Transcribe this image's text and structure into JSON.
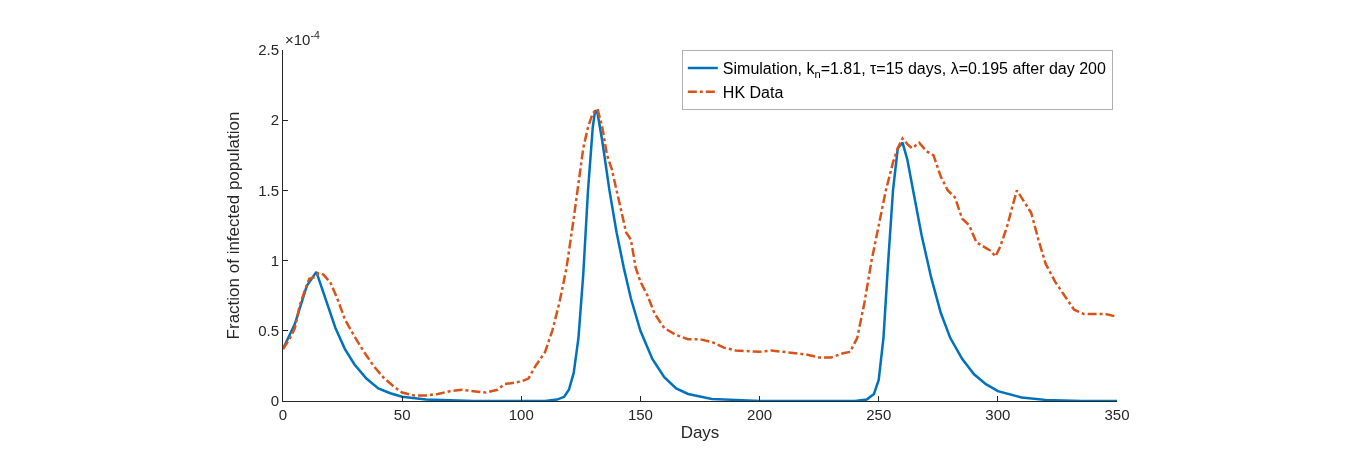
{
  "chart_data": {
    "type": "line",
    "xlabel": "Days",
    "ylabel": "Fraction of infected population",
    "annotations": [
      "×10$^{-4}$"
    ],
    "xlim": [
      0,
      350
    ],
    "xticks": [
      0,
      50,
      100,
      150,
      200,
      250,
      300,
      350
    ],
    "ylim": [
      0,
      2.5
    ],
    "yticks": [
      0,
      0.5,
      1,
      1.5,
      2,
      2.5
    ],
    "legend": "top right",
    "marker": "none",
    "series": [
      {
        "name": "Simulation, k$_{n}$=1.81, τ=15 days, λ=0.195 after day 200",
        "color": "#0072bd",
        "line_style": "solid",
        "x": [
          0,
          5,
          10,
          14,
          18,
          22,
          26,
          30,
          35,
          40,
          45,
          50,
          60,
          80,
          110,
          115,
          118,
          120,
          122,
          124,
          126,
          128,
          130,
          131,
          132,
          134,
          137,
          140,
          143,
          146,
          150,
          155,
          160,
          165,
          170,
          180,
          200,
          240,
          245,
          248,
          250,
          252,
          254,
          256,
          258,
          260,
          262,
          265,
          268,
          272,
          276,
          280,
          285,
          290,
          295,
          300,
          310,
          320,
          335,
          350
        ],
        "values": [
          0.37,
          0.55,
          0.82,
          0.92,
          0.72,
          0.52,
          0.37,
          0.26,
          0.16,
          0.09,
          0.055,
          0.03,
          0.01,
          0.0,
          0.0,
          0.01,
          0.03,
          0.08,
          0.2,
          0.45,
          0.9,
          1.5,
          1.95,
          2.07,
          2.05,
          1.85,
          1.5,
          1.2,
          0.95,
          0.73,
          0.5,
          0.3,
          0.17,
          0.09,
          0.05,
          0.015,
          0.0,
          0.0,
          0.01,
          0.05,
          0.15,
          0.45,
          1.0,
          1.5,
          1.8,
          1.84,
          1.72,
          1.45,
          1.18,
          0.88,
          0.63,
          0.45,
          0.3,
          0.19,
          0.12,
          0.07,
          0.025,
          0.008,
          0.0,
          0.0
        ]
      },
      {
        "name": "HK Data",
        "color": "#d95319",
        "line_style": "dashed",
        "x": [
          0,
          3,
          5,
          7,
          9,
          11,
          13,
          15,
          17,
          20,
          23,
          26,
          30,
          34,
          38,
          42,
          46,
          50,
          55,
          60,
          65,
          70,
          75,
          80,
          85,
          90,
          93,
          97,
          100,
          103,
          106,
          110,
          113,
          116,
          119,
          122,
          124,
          126,
          128,
          130,
          132,
          134,
          136,
          138,
          140,
          142,
          144,
          146,
          148,
          150,
          153,
          156,
          160,
          165,
          170,
          175,
          180,
          185,
          190,
          200,
          205,
          210,
          215,
          220,
          225,
          230,
          235,
          238,
          241,
          244,
          247,
          250,
          253,
          256,
          258,
          260,
          262,
          264,
          267,
          270,
          273,
          276,
          279,
          282,
          285,
          288,
          291,
          294,
          297,
          299,
          301,
          304,
          306,
          308,
          311,
          314,
          317,
          320,
          324,
          328,
          332,
          336,
          340,
          345,
          350
        ],
        "values": [
          0.37,
          0.45,
          0.52,
          0.68,
          0.78,
          0.87,
          0.88,
          0.91,
          0.9,
          0.84,
          0.72,
          0.58,
          0.46,
          0.35,
          0.25,
          0.17,
          0.11,
          0.06,
          0.04,
          0.04,
          0.05,
          0.07,
          0.08,
          0.07,
          0.06,
          0.08,
          0.12,
          0.13,
          0.14,
          0.16,
          0.25,
          0.35,
          0.5,
          0.7,
          0.95,
          1.3,
          1.55,
          1.8,
          1.95,
          2.05,
          2.08,
          1.95,
          1.75,
          1.65,
          1.5,
          1.35,
          1.2,
          1.15,
          0.95,
          0.85,
          0.75,
          0.62,
          0.52,
          0.47,
          0.44,
          0.44,
          0.42,
          0.38,
          0.36,
          0.35,
          0.36,
          0.35,
          0.34,
          0.33,
          0.31,
          0.31,
          0.34,
          0.35,
          0.45,
          0.7,
          1.0,
          1.25,
          1.5,
          1.7,
          1.8,
          1.87,
          1.83,
          1.8,
          1.84,
          1.78,
          1.75,
          1.6,
          1.5,
          1.45,
          1.3,
          1.25,
          1.13,
          1.1,
          1.07,
          1.03,
          1.1,
          1.25,
          1.38,
          1.5,
          1.42,
          1.34,
          1.15,
          0.98,
          0.85,
          0.75,
          0.65,
          0.62,
          0.62,
          0.62,
          0.6
        ]
      }
    ]
  }
}
